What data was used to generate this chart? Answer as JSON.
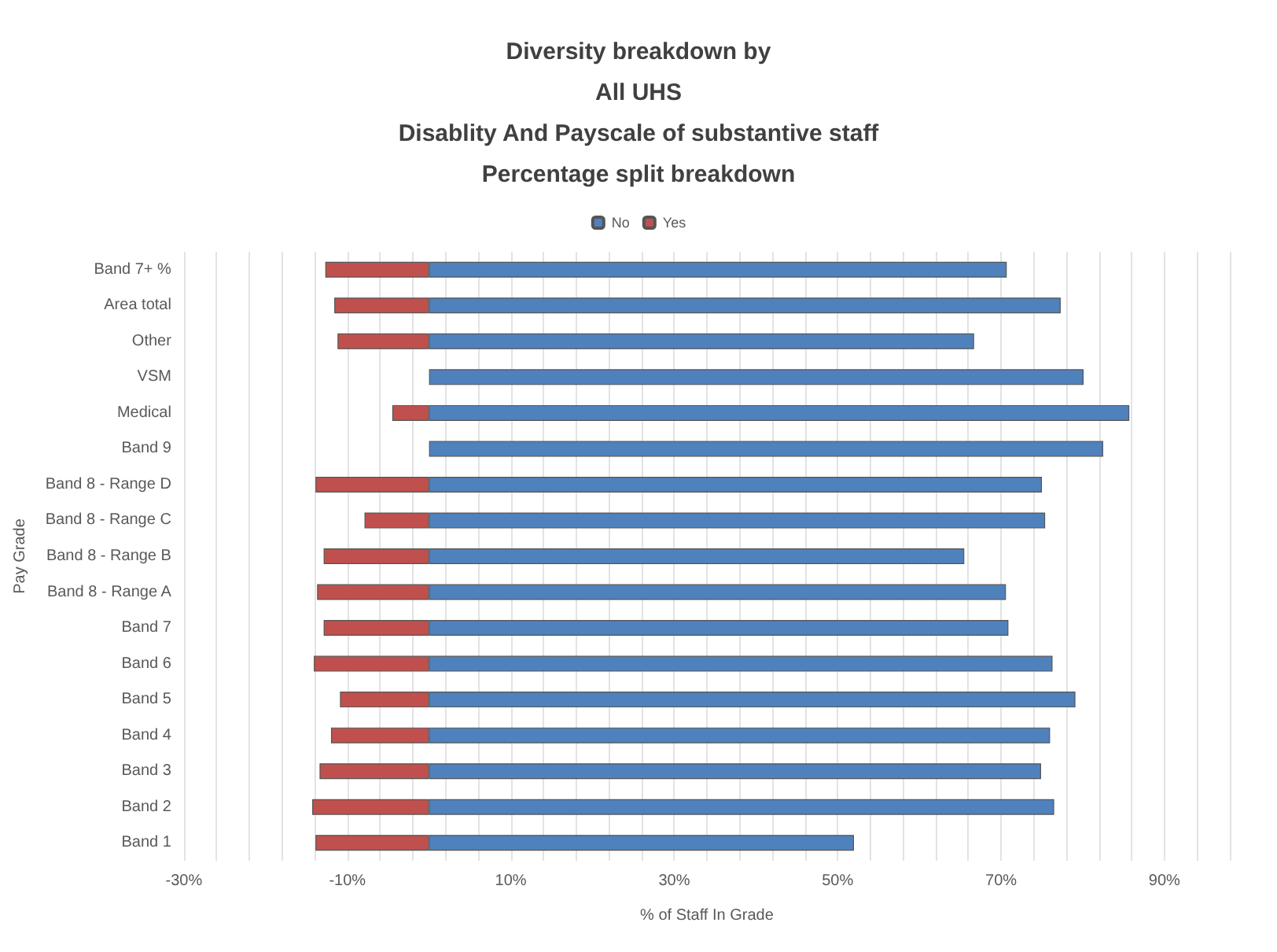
{
  "chart_data": {
    "type": "bar",
    "orientation": "horizontal",
    "stacked": true,
    "title": "Diversity breakdown by\nAll UHS\nDisablity And Payscale of substantive staff\nPercentage split breakdown",
    "xlabel": "% of Staff In Grade",
    "ylabel": "Pay Grade",
    "categories": [
      "Band 7+ %",
      "Area total",
      "Other",
      "VSM",
      "Medical",
      "Band 9",
      "Band 8 - Range D",
      "Band 8 - Range C",
      "Band 8 - Range B",
      "Band 8 - Range A",
      "Band 7",
      "Band 6",
      "Band 5",
      "Band 4",
      "Band 3",
      "Band 2",
      "Band 1"
    ],
    "series": [
      {
        "name": "No",
        "color": "#4f81bd",
        "values": [
          70.7,
          77.3,
          66.7,
          80.1,
          85.7,
          82.5,
          75.0,
          75.4,
          65.5,
          70.6,
          70.9,
          76.3,
          79.1,
          76.0,
          74.9,
          76.5,
          52.0
        ]
      },
      {
        "name": "Yes",
        "color": "#c0504d",
        "values": [
          -12.7,
          -11.6,
          -11.2,
          null,
          -4.5,
          null,
          -13.9,
          -7.9,
          -12.9,
          -13.7,
          -12.9,
          -14.1,
          -10.9,
          -12.0,
          -13.4,
          -14.3,
          -13.9
        ]
      }
    ],
    "xlim": [
      -30,
      98
    ],
    "xticks": [
      {
        "value": -30,
        "label": "-30%"
      },
      {
        "value": -26,
        "label": null
      },
      {
        "value": -22,
        "label": null
      },
      {
        "value": -18,
        "label": null
      },
      {
        "value": -14,
        "label": null
      },
      {
        "value": -10,
        "label": "-10%"
      },
      {
        "value": -6,
        "label": null
      },
      {
        "value": -2,
        "label": null
      },
      {
        "value": 2,
        "label": null
      },
      {
        "value": 6,
        "label": null
      },
      {
        "value": 10,
        "label": "10%"
      },
      {
        "value": 14,
        "label": null
      },
      {
        "value": 18,
        "label": null
      },
      {
        "value": 22,
        "label": null
      },
      {
        "value": 26,
        "label": null
      },
      {
        "value": 30,
        "label": "30%"
      },
      {
        "value": 34,
        "label": null
      },
      {
        "value": 38,
        "label": null
      },
      {
        "value": 42,
        "label": null
      },
      {
        "value": 46,
        "label": null
      },
      {
        "value": 50,
        "label": "50%"
      },
      {
        "value": 54,
        "label": null
      },
      {
        "value": 58,
        "label": null
      },
      {
        "value": 62,
        "label": null
      },
      {
        "value": 66,
        "label": null
      },
      {
        "value": 70,
        "label": "70%"
      },
      {
        "value": 74,
        "label": null
      },
      {
        "value": 78,
        "label": null
      },
      {
        "value": 82,
        "label": null
      },
      {
        "value": 86,
        "label": null
      },
      {
        "value": 90,
        "label": "90%"
      },
      {
        "value": 94,
        "label": null
      },
      {
        "value": 98,
        "label": null
      }
    ],
    "grid": "x",
    "legend": "top"
  }
}
